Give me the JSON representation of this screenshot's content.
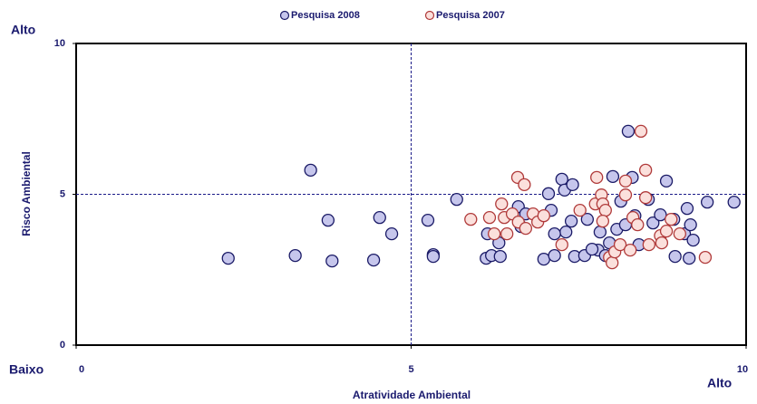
{
  "chart_data": {
    "type": "scatter",
    "x_label": "Atratividade Ambiental",
    "y_label": "Risco Ambiental",
    "annotations": [
      "Alto",
      "Baixo",
      "Alto"
    ],
    "xlim": [
      0,
      10
    ],
    "ylim": [
      0,
      10
    ],
    "xticks": [
      0,
      5,
      10
    ],
    "yticks": [
      0,
      5,
      10
    ],
    "xref": 5,
    "yref": 5,
    "legend": "top",
    "series": [
      {
        "name": "Pesquisa 2008",
        "color": "#c6c6ec",
        "edge": "#1a1a66",
        "x": [
          2.27,
          3.27,
          3.82,
          4.44,
          3.5,
          3.76,
          4.53,
          4.71,
          5.25,
          5.33,
          5.33,
          5.68,
          6.14,
          6.12,
          6.2,
          6.31,
          6.33,
          6.6,
          6.64,
          6.71,
          6.98,
          7.05,
          7.09,
          7.14,
          7.25,
          7.29,
          7.31,
          7.39,
          7.44,
          7.41,
          7.63,
          7.59,
          7.79,
          7.82,
          7.9,
          8.01,
          8.07,
          8.13,
          8.2,
          8.24,
          8.3,
          8.34,
          8.4,
          8.54,
          8.61,
          8.72,
          8.81,
          8.92,
          8.94,
          9.08,
          9.12,
          9.15,
          9.17,
          9.21,
          9.42,
          9.82,
          7.14,
          7.7,
          7.96
        ],
        "values": [
          2.88,
          2.97,
          2.79,
          2.82,
          5.8,
          4.14,
          4.23,
          3.69,
          4.14,
          3.0,
          2.94,
          4.83,
          3.69,
          2.88,
          2.97,
          3.39,
          2.94,
          4.59,
          3.93,
          4.35,
          2.85,
          5.02,
          4.47,
          2.97,
          5.5,
          5.14,
          3.75,
          4.11,
          2.94,
          5.32,
          4.17,
          2.97,
          3.15,
          3.75,
          2.97,
          5.59,
          3.84,
          4.77,
          3.99,
          7.09,
          5.56,
          4.29,
          3.33,
          4.83,
          4.05,
          4.32,
          5.44,
          4.17,
          2.94,
          3.69,
          4.53,
          2.88,
          3.99,
          3.48,
          4.74,
          4.74,
          3.69,
          3.18,
          3.39
        ]
      },
      {
        "name": "Pesquisa 2007",
        "color": "#fbe0dc",
        "edge": "#b03a3a",
        "x": [
          5.89,
          6.17,
          6.24,
          6.35,
          6.39,
          6.43,
          6.51,
          6.59,
          6.69,
          6.6,
          6.71,
          6.82,
          6.89,
          6.98,
          7.25,
          7.52,
          7.75,
          7.77,
          7.84,
          7.86,
          7.9,
          7.96,
          8.0,
          8.04,
          8.12,
          8.2,
          8.2,
          8.27,
          8.31,
          8.38,
          8.43,
          8.5,
          8.5,
          8.55,
          8.72,
          8.81,
          8.88,
          9.01,
          8.74,
          9.39,
          7.86
        ],
        "values": [
          4.17,
          4.23,
          3.69,
          4.68,
          4.23,
          3.69,
          4.35,
          5.56,
          5.32,
          4.08,
          3.87,
          4.35,
          4.08,
          4.29,
          3.33,
          4.47,
          4.68,
          5.56,
          4.98,
          4.68,
          4.47,
          2.91,
          2.73,
          3.09,
          3.33,
          4.98,
          5.44,
          3.15,
          4.23,
          3.99,
          7.09,
          5.8,
          4.89,
          3.33,
          3.63,
          3.78,
          4.17,
          3.69,
          3.39,
          2.91,
          4.11
        ]
      }
    ]
  }
}
